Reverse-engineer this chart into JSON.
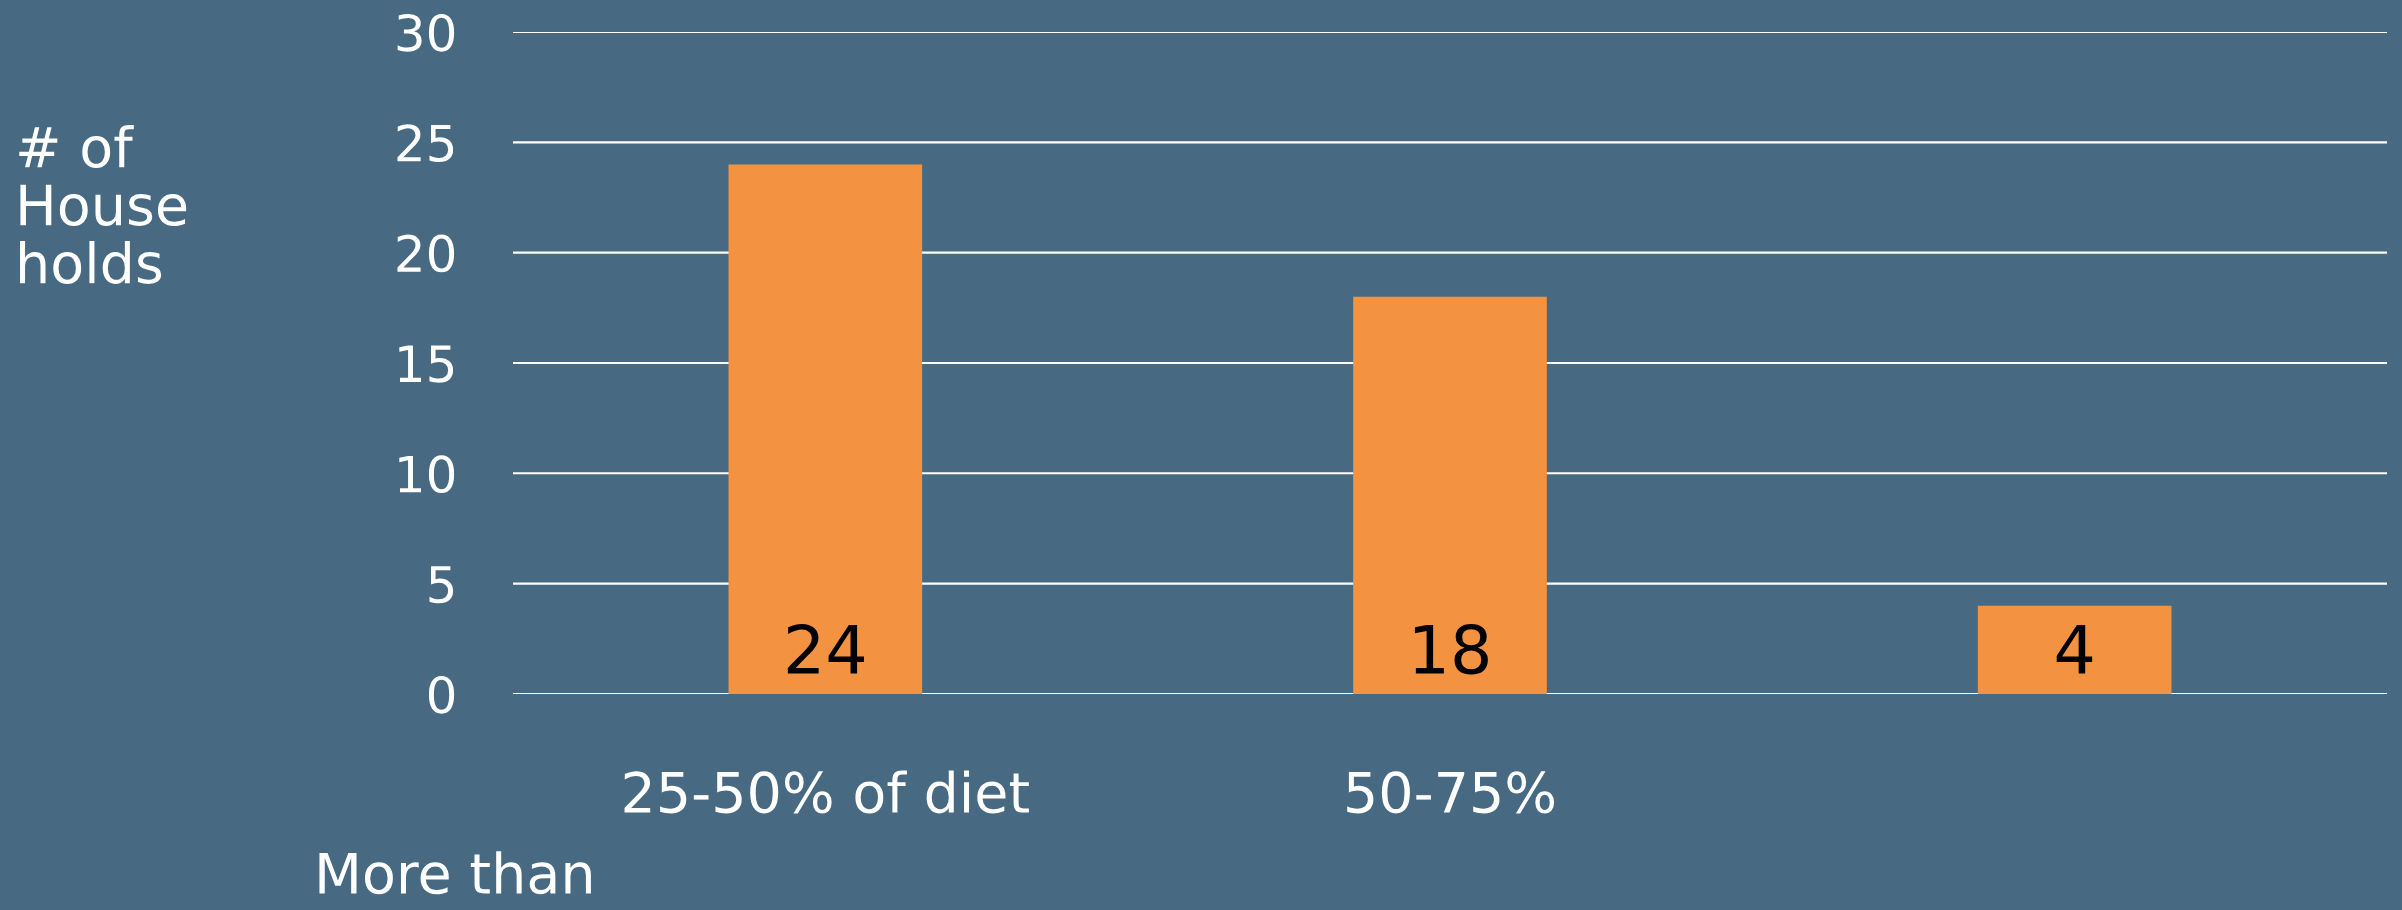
{
  "chart_data": {
    "type": "bar",
    "ylabel": "# of\nHouse\nholds",
    "categories": [
      "25-50% of diet",
      "50-75%",
      null
    ],
    "values": [
      24,
      18,
      4
    ],
    "color": "#f39240",
    "data_labels": true,
    "ylim": [
      0,
      30
    ],
    "yticks": [
      0,
      5,
      10,
      15,
      20,
      25,
      30
    ],
    "grid": "y",
    "annotations": [
      "More than"
    ]
  }
}
